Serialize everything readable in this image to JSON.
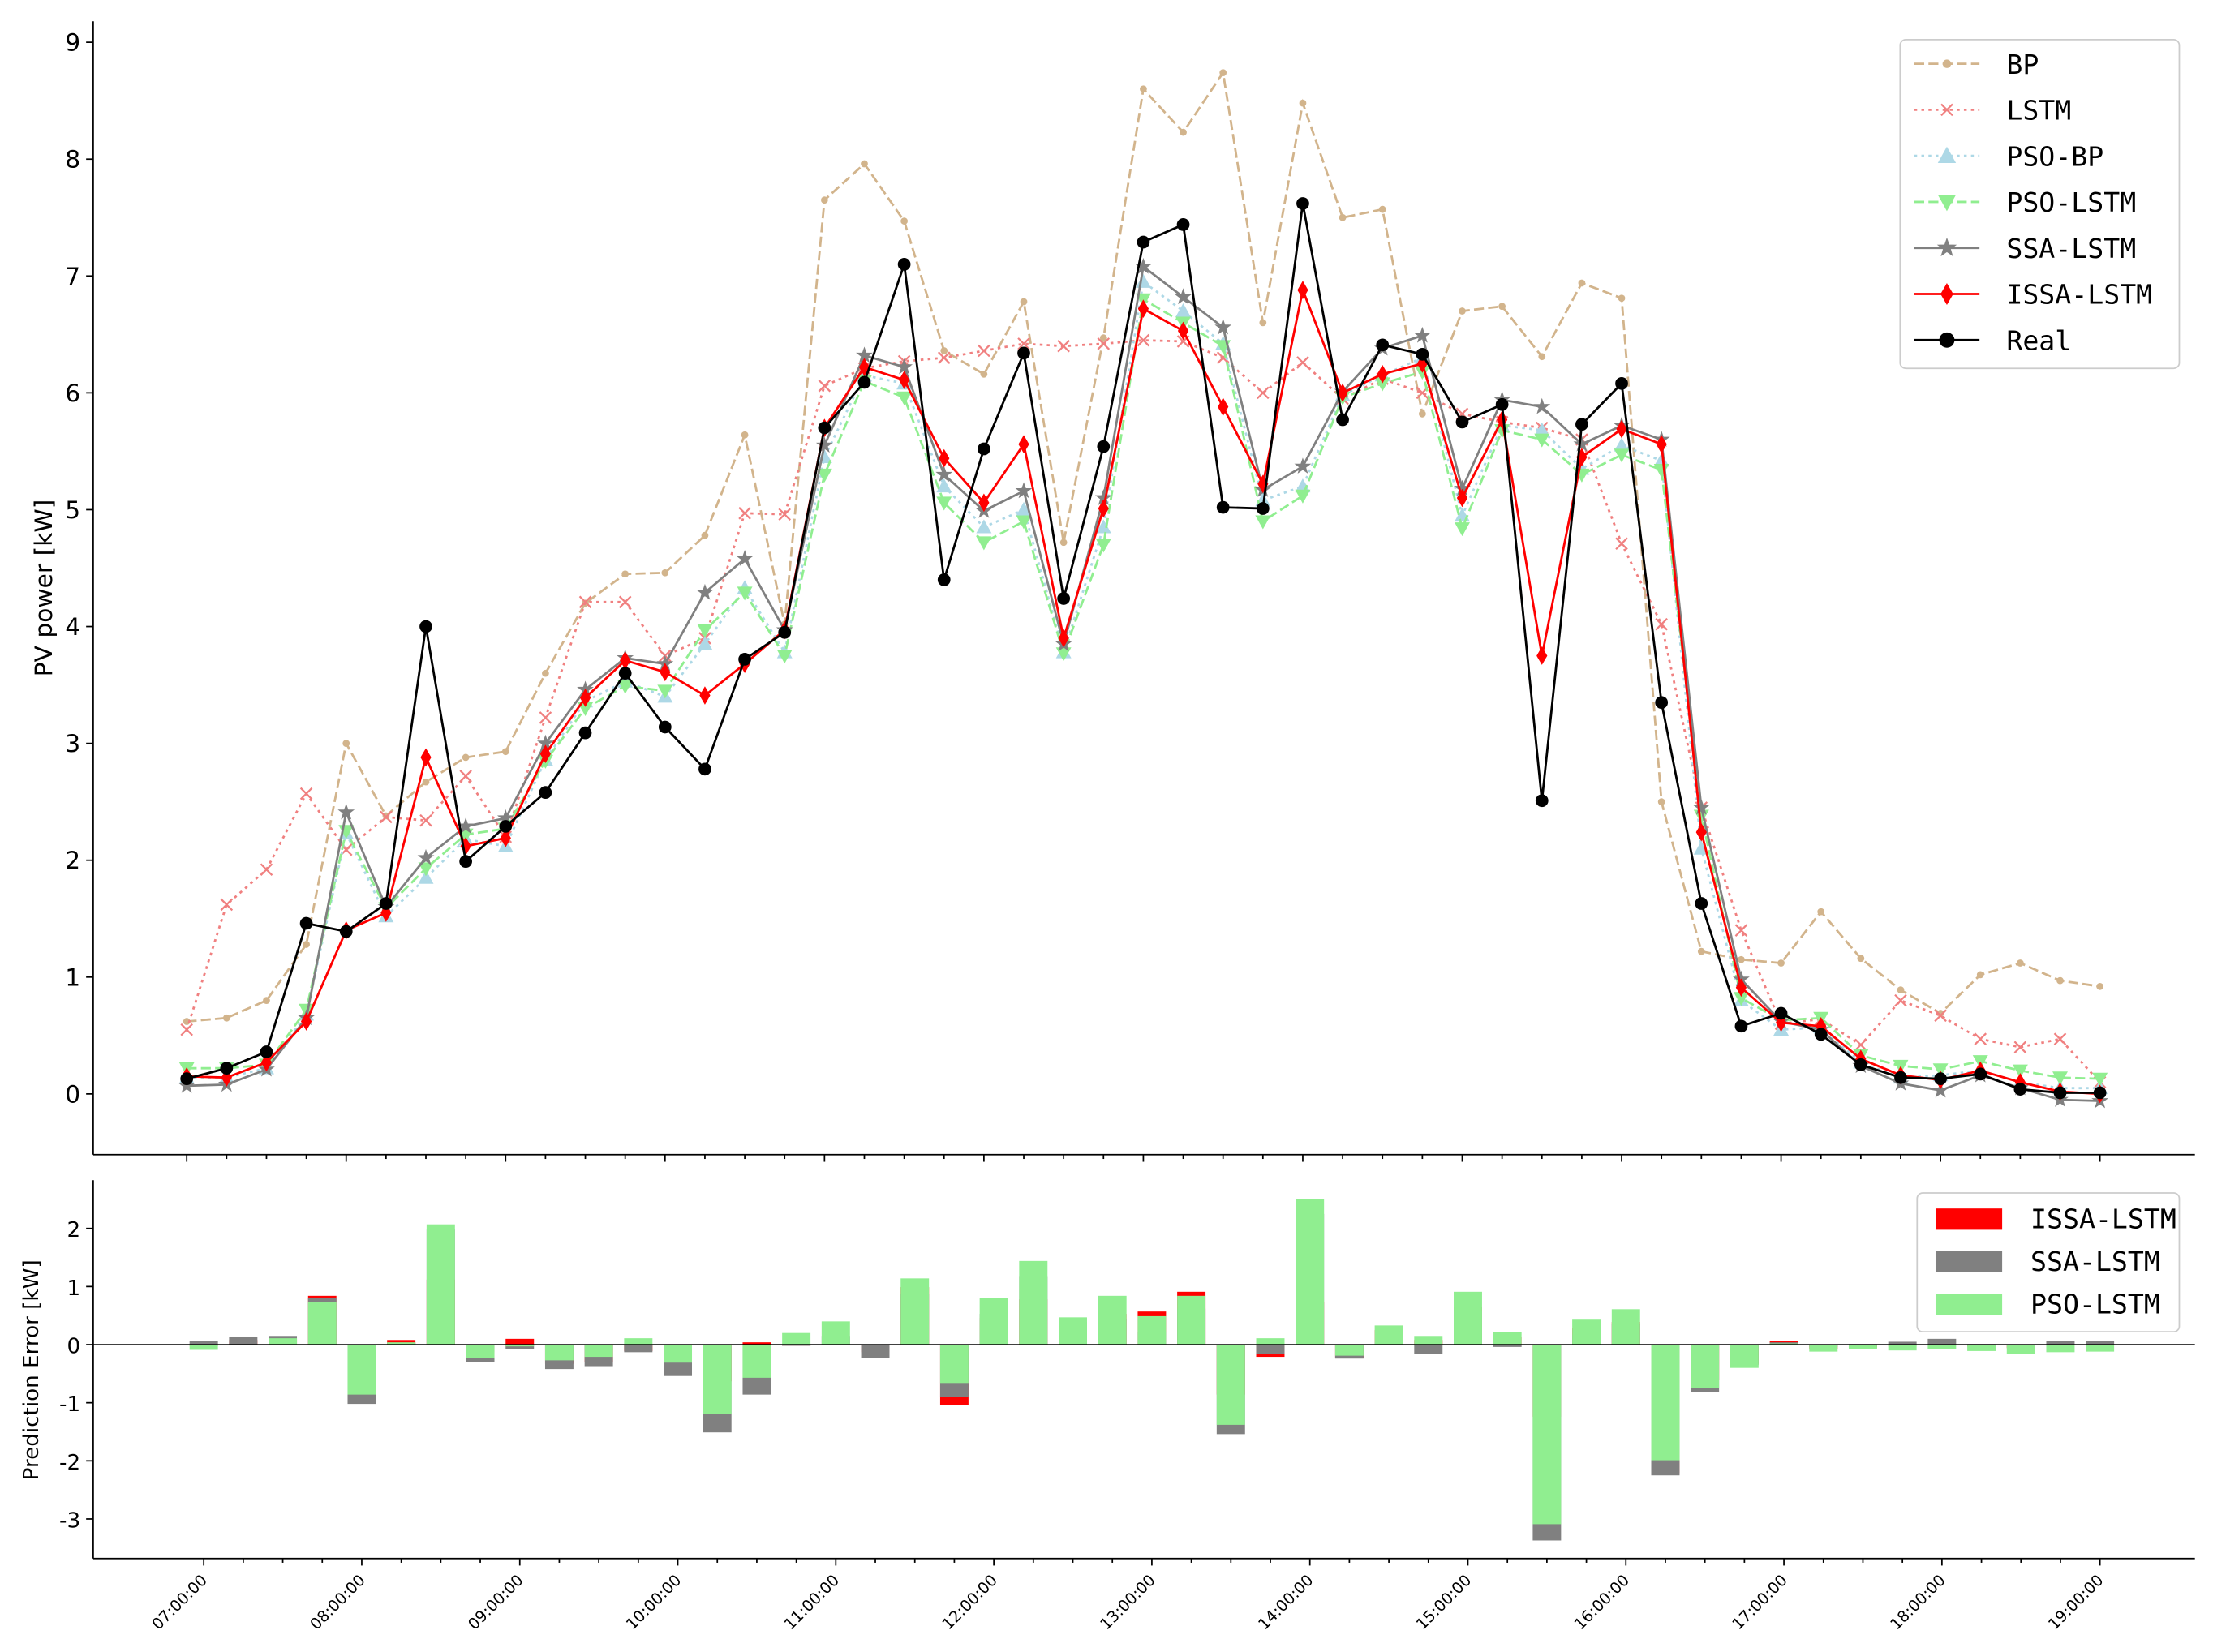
{
  "chart_data": [
    {
      "type": "line",
      "ylabel": "PV power [kW]",
      "ylim": [
        -0.52,
        9.18
      ],
      "yticks": [
        0,
        1,
        2,
        3,
        4,
        5,
        6,
        7,
        8,
        9
      ],
      "legend": "upper right",
      "series": [
        {
          "name": "BP",
          "color": "#d2b48c",
          "linestyle": "dashed",
          "marker": "dot",
          "values": [
            0.62,
            0.65,
            0.8,
            1.28,
            3.0,
            2.38,
            2.67,
            2.88,
            2.93,
            3.6,
            4.2,
            4.45,
            4.46,
            4.78,
            5.64,
            4.02,
            7.65,
            7.96,
            7.47,
            6.36,
            6.16,
            6.78,
            4.72,
            6.47,
            8.6,
            8.23,
            8.74,
            6.6,
            8.48,
            7.5,
            7.57,
            5.82,
            6.7,
            6.74,
            6.31,
            6.94,
            6.81,
            2.5,
            1.22,
            1.15,
            1.12,
            1.56,
            1.16,
            0.89,
            0.69,
            1.02,
            1.12,
            0.97,
            0.92
          ]
        },
        {
          "name": "LSTM",
          "color": "#f08080",
          "linestyle": "dotted",
          "marker": "x",
          "values": [
            0.55,
            1.62,
            1.92,
            2.57,
            2.09,
            2.37,
            2.34,
            2.72,
            2.2,
            3.22,
            4.21,
            4.21,
            3.75,
            3.9,
            4.97,
            4.96,
            6.06,
            6.21,
            6.27,
            6.3,
            6.36,
            6.42,
            6.4,
            6.42,
            6.45,
            6.44,
            6.3,
            6.0,
            6.26,
            5.95,
            6.12,
            6.0,
            5.82,
            5.75,
            5.7,
            5.6,
            4.71,
            4.02,
            2.45,
            1.4,
            0.6,
            0.64,
            0.42,
            0.8,
            0.67,
            0.47,
            0.4,
            0.47,
            0.1
          ]
        },
        {
          "name": "PSO-BP",
          "color": "#add8e6",
          "linestyle": "dotted",
          "marker": "triangle-up",
          "values": [
            0.14,
            0.14,
            0.22,
            0.68,
            2.23,
            1.52,
            1.85,
            2.18,
            2.12,
            2.86,
            3.36,
            3.53,
            3.4,
            3.85,
            4.33,
            3.78,
            5.45,
            6.15,
            6.08,
            5.2,
            4.85,
            5.0,
            3.78,
            4.85,
            6.95,
            6.7,
            6.42,
            5.08,
            5.2,
            5.98,
            6.15,
            6.3,
            4.95,
            5.72,
            5.68,
            5.35,
            5.55,
            5.42,
            2.1,
            0.8,
            0.55,
            0.57,
            0.27,
            0.14,
            0.16,
            0.2,
            0.1,
            0.05,
            0.05
          ]
        },
        {
          "name": "PSO-LSTM",
          "color": "#90ee90",
          "linestyle": "dashed",
          "marker": "triangle-down",
          "values": [
            0.22,
            0.22,
            0.25,
            0.72,
            2.25,
            1.59,
            1.93,
            2.22,
            2.27,
            2.85,
            3.3,
            3.49,
            3.45,
            3.97,
            4.29,
            3.75,
            5.3,
            6.1,
            5.96,
            5.06,
            4.72,
            4.9,
            3.77,
            4.7,
            6.8,
            6.6,
            6.4,
            4.9,
            5.12,
            5.96,
            6.08,
            6.18,
            4.84,
            5.68,
            5.6,
            5.3,
            5.47,
            5.34,
            2.38,
            0.82,
            0.63,
            0.65,
            0.33,
            0.24,
            0.21,
            0.28,
            0.2,
            0.14,
            0.13
          ]
        },
        {
          "name": "SSA-LSTM",
          "color": "#808080",
          "linestyle": "solid",
          "marker": "star",
          "values": [
            0.07,
            0.08,
            0.21,
            0.65,
            2.41,
            1.6,
            2.02,
            2.29,
            2.36,
            3.0,
            3.46,
            3.73,
            3.68,
            4.29,
            4.58,
            3.97,
            5.55,
            6.32,
            6.22,
            5.3,
            4.99,
            5.16,
            3.85,
            5.1,
            7.08,
            6.82,
            6.56,
            5.17,
            5.37,
            6.01,
            6.38,
            6.49,
            5.18,
            5.94,
            5.88,
            5.56,
            5.72,
            5.6,
            2.45,
            0.98,
            0.62,
            0.55,
            0.24,
            0.09,
            0.03,
            0.16,
            0.05,
            -0.05,
            -0.06
          ]
        },
        {
          "name": "ISSA-LSTM",
          "color": "#ff0000",
          "linestyle": "solid",
          "marker": "diamond",
          "values": [
            0.15,
            0.14,
            0.27,
            0.62,
            1.4,
            1.55,
            2.88,
            2.12,
            2.19,
            2.91,
            3.39,
            3.71,
            3.61,
            3.41,
            3.68,
            3.97,
            5.7,
            6.22,
            6.11,
            5.44,
            5.06,
            5.56,
            3.9,
            5.01,
            6.72,
            6.53,
            5.88,
            5.22,
            6.88,
            6.0,
            6.16,
            6.25,
            5.1,
            5.77,
            3.75,
            5.45,
            5.69,
            5.56,
            2.24,
            0.91,
            0.61,
            0.58,
            0.3,
            0.16,
            0.12,
            0.2,
            0.1,
            0.02,
            0.0
          ]
        },
        {
          "name": "Real",
          "color": "#000000",
          "linestyle": "solid",
          "marker": "circle",
          "values": [
            0.13,
            0.22,
            0.36,
            1.46,
            1.39,
            1.63,
            4.0,
            1.99,
            2.29,
            2.58,
            3.09,
            3.6,
            3.14,
            2.78,
            3.72,
            3.95,
            5.7,
            6.09,
            7.1,
            4.4,
            5.52,
            6.34,
            4.24,
            5.54,
            7.29,
            7.44,
            5.02,
            5.01,
            7.62,
            5.77,
            6.41,
            6.33,
            5.75,
            5.9,
            2.51,
            5.73,
            6.08,
            3.35,
            1.63,
            0.58,
            0.69,
            0.51,
            0.25,
            0.14,
            0.13,
            0.17,
            0.04,
            0.01,
            0.01
          ]
        }
      ]
    },
    {
      "type": "bar",
      "ylabel": "Prediction Error [kW]",
      "ylim": [
        -3.68,
        2.83
      ],
      "yticks": [
        -3,
        -2,
        -1,
        0,
        1,
        2
      ],
      "legend": "upper right",
      "categories": [
        "07:00:00",
        null,
        null,
        null,
        "08:00:00",
        null,
        null,
        null,
        "09:00:00",
        null,
        null,
        null,
        "10:00:00",
        null,
        null,
        null,
        "11:00:00",
        null,
        null,
        null,
        "12:00:00",
        null,
        null,
        null,
        "13:00:00",
        null,
        null,
        null,
        "14:00:00",
        null,
        null,
        null,
        "15:00:00",
        null,
        null,
        null,
        "16:00:00",
        null,
        null,
        null,
        "17:00:00",
        null,
        null,
        null,
        "18:00:00",
        null,
        null,
        null,
        "19:00:00"
      ],
      "series": [
        {
          "name": "ISSA-LSTM",
          "color": "#ff0000",
          "values": [
            -0.02,
            0.08,
            0.09,
            0.84,
            -0.01,
            0.08,
            1.12,
            -0.13,
            0.1,
            -0.33,
            -0.3,
            -0.11,
            -0.47,
            -0.63,
            0.04,
            -0.02,
            0,
            -0.13,
            0.99,
            -1.04,
            0.46,
            0.78,
            0.34,
            0.53,
            0.57,
            0.91,
            -0.86,
            -0.21,
            0.74,
            -0.23,
            0.25,
            0.08,
            0.65,
            0.13,
            -1.24,
            0.28,
            0.39,
            -2.21,
            -0.61,
            -0.33,
            0.07,
            -0.07,
            -0.05,
            -0.02,
            0.01,
            -0.03,
            -0.06,
            -0.01,
            0.01
          ]
        },
        {
          "name": "SSA-LSTM",
          "color": "#808080",
          "values": [
            0.06,
            0.14,
            0.15,
            0.81,
            -1.02,
            0.03,
            1.98,
            -0.3,
            -0.07,
            -0.42,
            -0.37,
            -0.13,
            -0.54,
            -1.51,
            -0.86,
            -0.02,
            0.15,
            -0.23,
            0.88,
            -0.9,
            0.53,
            1.18,
            0.39,
            0.44,
            0.21,
            0.62,
            -1.54,
            -0.16,
            2.25,
            -0.24,
            0.03,
            -0.16,
            0.57,
            -0.04,
            -3.37,
            0.17,
            0.36,
            -2.25,
            -0.82,
            -0.35,
            0.04,
            -0.04,
            0.01,
            0.05,
            0.1,
            0.01,
            -0.01,
            0.06,
            0.07
          ]
        },
        {
          "name": "PSO-LSTM",
          "color": "#90ee90",
          "values": [
            -0.09,
            0.0,
            0.11,
            0.74,
            -0.86,
            0.04,
            2.07,
            -0.23,
            -0.03,
            -0.27,
            -0.21,
            0.11,
            -0.31,
            -1.19,
            -0.57,
            0.2,
            0.4,
            -0.01,
            1.14,
            -0.66,
            0.8,
            1.44,
            0.47,
            0.84,
            0.49,
            0.84,
            -1.38,
            0.11,
            2.5,
            -0.19,
            0.33,
            0.15,
            0.91,
            0.22,
            -3.09,
            0.43,
            0.61,
            -1.99,
            -0.75,
            -0.4,
            0.02,
            -0.12,
            -0.08,
            -0.1,
            -0.08,
            -0.11,
            -0.16,
            -0.13,
            -0.12
          ]
        }
      ]
    }
  ]
}
